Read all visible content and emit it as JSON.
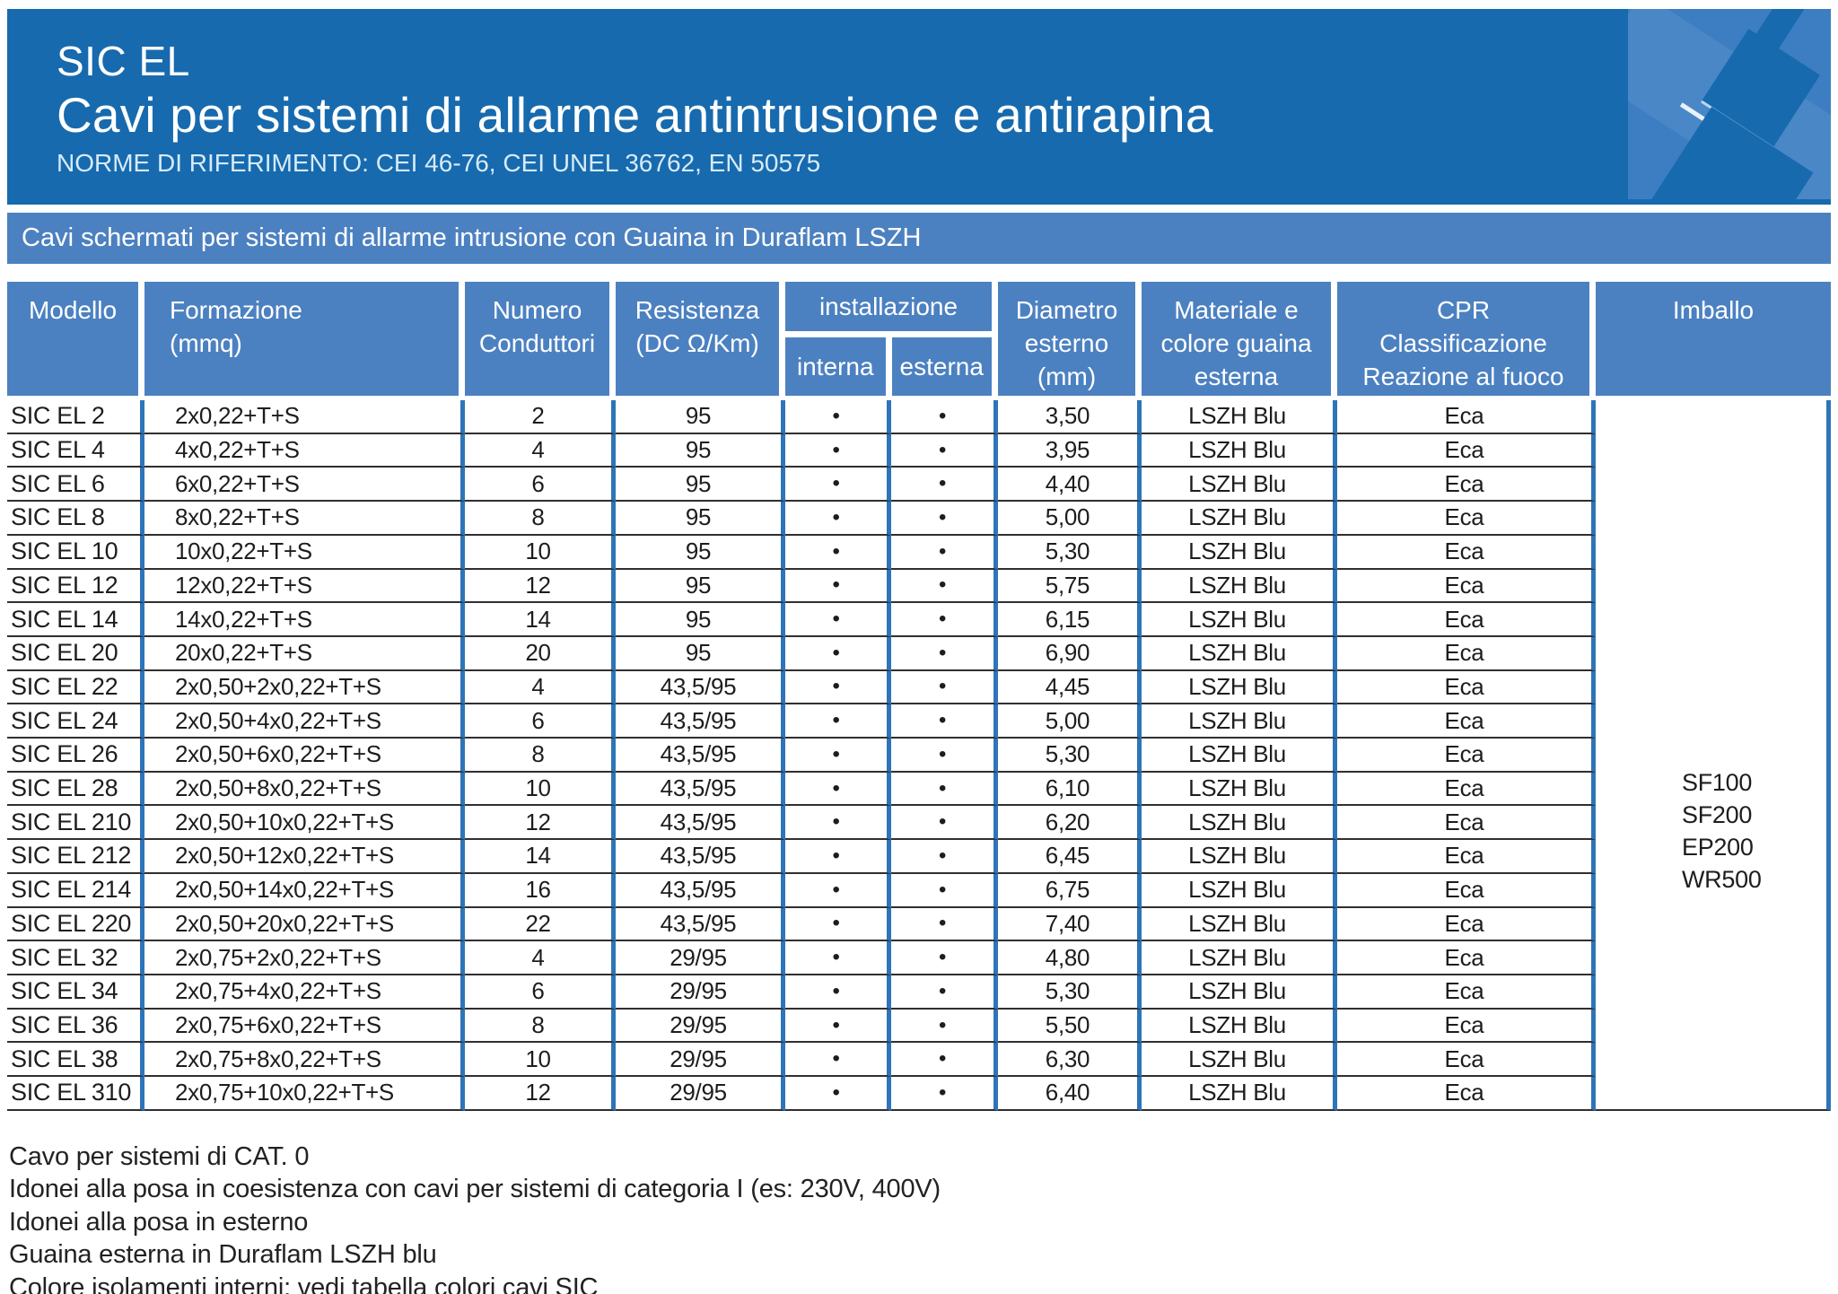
{
  "header": {
    "title": "SIC EL",
    "subtitle": "Cavi per sistemi di allarme antintrusione e antirapina",
    "norms": "NORME DI RIFERIMENTO: CEI 46-76, CEI UNEL 36762, EN 50575"
  },
  "band": {
    "text": "Cavi schermati per sistemi di allarme intrusione con Guaina in Duraflam LSZH"
  },
  "table": {
    "headers": {
      "modello": "Modello",
      "formazione": "Formazione\n(mmq)",
      "conduttori": "Numero\nConduttori",
      "resistenza": "Resistenza\n(DC Ω/Km)",
      "installazione": "installazione",
      "interna": "interna",
      "esterna": "esterna",
      "diametro": "Diametro\nesterno\n(mm)",
      "guaina": "Materiale e\ncolore guaina\nesterna",
      "cpr": "CPR\nClassificazione\nReazione al fuoco",
      "imballo": "Imballo"
    },
    "rows": [
      {
        "modello": "SIC EL 2",
        "formazione": "2x0,22+T+S",
        "conduttori": "2",
        "resistenza": "95",
        "interna": "•",
        "esterna": "•",
        "diametro": "3,50",
        "guaina": "LSZH Blu",
        "cpr": "Eca"
      },
      {
        "modello": "SIC EL 4",
        "formazione": "4x0,22+T+S",
        "conduttori": "4",
        "resistenza": "95",
        "interna": "•",
        "esterna": "•",
        "diametro": "3,95",
        "guaina": "LSZH Blu",
        "cpr": "Eca"
      },
      {
        "modello": "SIC EL 6",
        "formazione": "6x0,22+T+S",
        "conduttori": "6",
        "resistenza": "95",
        "interna": "•",
        "esterna": "•",
        "diametro": "4,40",
        "guaina": "LSZH Blu",
        "cpr": "Eca"
      },
      {
        "modello": "SIC EL 8",
        "formazione": "8x0,22+T+S",
        "conduttori": "8",
        "resistenza": "95",
        "interna": "•",
        "esterna": "•",
        "diametro": "5,00",
        "guaina": "LSZH Blu",
        "cpr": "Eca"
      },
      {
        "modello": "SIC EL 10",
        "formazione": "10x0,22+T+S",
        "conduttori": "10",
        "resistenza": "95",
        "interna": "•",
        "esterna": "•",
        "diametro": "5,30",
        "guaina": "LSZH Blu",
        "cpr": "Eca"
      },
      {
        "modello": "SIC EL 12",
        "formazione": "12x0,22+T+S",
        "conduttori": "12",
        "resistenza": "95",
        "interna": "•",
        "esterna": "•",
        "diametro": "5,75",
        "guaina": "LSZH Blu",
        "cpr": "Eca"
      },
      {
        "modello": "SIC EL 14",
        "formazione": "14x0,22+T+S",
        "conduttori": "14",
        "resistenza": "95",
        "interna": "•",
        "esterna": "•",
        "diametro": "6,15",
        "guaina": "LSZH Blu",
        "cpr": "Eca"
      },
      {
        "modello": "SIC EL 20",
        "formazione": "20x0,22+T+S",
        "conduttori": "20",
        "resistenza": "95",
        "interna": "•",
        "esterna": "•",
        "diametro": "6,90",
        "guaina": "LSZH Blu",
        "cpr": "Eca"
      },
      {
        "modello": "SIC EL 22",
        "formazione": "2x0,50+2x0,22+T+S",
        "conduttori": "4",
        "resistenza": "43,5/95",
        "interna": "•",
        "esterna": "•",
        "diametro": "4,45",
        "guaina": "LSZH Blu",
        "cpr": "Eca"
      },
      {
        "modello": "SIC EL 24",
        "formazione": "2x0,50+4x0,22+T+S",
        "conduttori": "6",
        "resistenza": "43,5/95",
        "interna": "•",
        "esterna": "•",
        "diametro": "5,00",
        "guaina": "LSZH Blu",
        "cpr": "Eca"
      },
      {
        "modello": "SIC EL 26",
        "formazione": "2x0,50+6x0,22+T+S",
        "conduttori": "8",
        "resistenza": "43,5/95",
        "interna": "•",
        "esterna": "•",
        "diametro": "5,30",
        "guaina": "LSZH Blu",
        "cpr": "Eca"
      },
      {
        "modello": "SIC EL 28",
        "formazione": "2x0,50+8x0,22+T+S",
        "conduttori": "10",
        "resistenza": "43,5/95",
        "interna": "•",
        "esterna": "•",
        "diametro": "6,10",
        "guaina": "LSZH Blu",
        "cpr": "Eca"
      },
      {
        "modello": "SIC EL 210",
        "formazione": "2x0,50+10x0,22+T+S",
        "conduttori": "12",
        "resistenza": "43,5/95",
        "interna": "•",
        "esterna": "•",
        "diametro": "6,20",
        "guaina": "LSZH Blu",
        "cpr": "Eca"
      },
      {
        "modello": "SIC EL 212",
        "formazione": "2x0,50+12x0,22+T+S",
        "conduttori": "14",
        "resistenza": "43,5/95",
        "interna": "•",
        "esterna": "•",
        "diametro": "6,45",
        "guaina": "LSZH Blu",
        "cpr": "Eca"
      },
      {
        "modello": "SIC EL 214",
        "formazione": "2x0,50+14x0,22+T+S",
        "conduttori": "16",
        "resistenza": "43,5/95",
        "interna": "•",
        "esterna": "•",
        "diametro": "6,75",
        "guaina": "LSZH Blu",
        "cpr": "Eca"
      },
      {
        "modello": "SIC EL 220",
        "formazione": "2x0,50+20x0,22+T+S",
        "conduttori": "22",
        "resistenza": "43,5/95",
        "interna": "•",
        "esterna": "•",
        "diametro": "7,40",
        "guaina": "LSZH Blu",
        "cpr": "Eca"
      },
      {
        "modello": "SIC EL 32",
        "formazione": "2x0,75+2x0,22+T+S",
        "conduttori": "4",
        "resistenza": "29/95",
        "interna": "•",
        "esterna": "•",
        "diametro": "4,80",
        "guaina": "LSZH Blu",
        "cpr": "Eca"
      },
      {
        "modello": "SIC EL 34",
        "formazione": "2x0,75+4x0,22+T+S",
        "conduttori": "6",
        "resistenza": "29/95",
        "interna": "•",
        "esterna": "•",
        "diametro": "5,30",
        "guaina": "LSZH Blu",
        "cpr": "Eca"
      },
      {
        "modello": "SIC EL 36",
        "formazione": "2x0,75+6x0,22+T+S",
        "conduttori": "8",
        "resistenza": "29/95",
        "interna": "•",
        "esterna": "•",
        "diametro": "5,50",
        "guaina": "LSZH Blu",
        "cpr": "Eca"
      },
      {
        "modello": "SIC EL 38",
        "formazione": "2x0,75+8x0,22+T+S",
        "conduttori": "10",
        "resistenza": "29/95",
        "interna": "•",
        "esterna": "•",
        "diametro": "6,30",
        "guaina": "LSZH Blu",
        "cpr": "Eca"
      },
      {
        "modello": "SIC EL 310",
        "formazione": "2x0,75+10x0,22+T+S",
        "conduttori": "12",
        "resistenza": "29/95",
        "interna": "•",
        "esterna": "•",
        "diametro": "6,40",
        "guaina": "LSZH Blu",
        "cpr": "Eca"
      }
    ],
    "imballo_values": [
      "SF100",
      "SF200",
      "EP200",
      "WR500"
    ]
  },
  "notes": [
    "Cavo per sistemi di CAT. 0",
    "Idonei alla posa in coesistenza con cavi per sistemi di categoria I (es: 230V, 400V)",
    "Idonei alla posa in esterno",
    "Guaina esterna in Duraflam LSZH blu",
    "Colore isolamenti interni: vedi tabella colori cavi SIC"
  ],
  "colors": {
    "header_blue": "#176aae",
    "panel_blue": "#4c81c1",
    "tile_blue": "#3d7ec2",
    "grid_line_blue": "#2e74b8",
    "row_line_dark": "#2f2f2f"
  }
}
